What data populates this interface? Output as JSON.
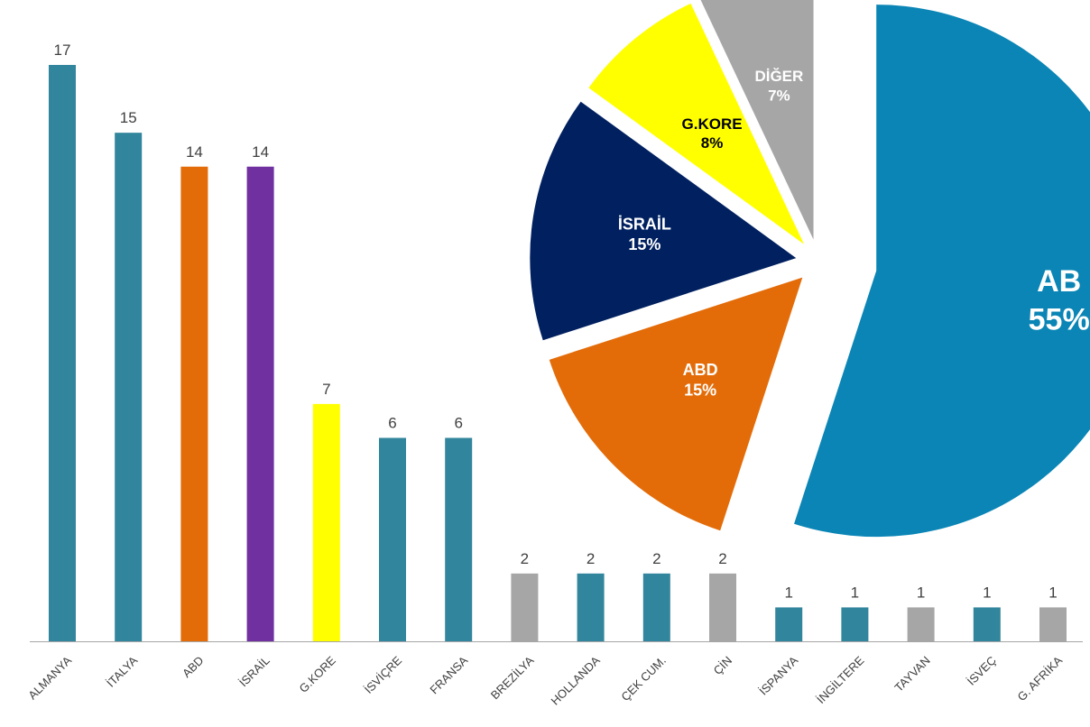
{
  "chart_data": [
    {
      "type": "bar",
      "categories": [
        "ALMANYA",
        "İTALYA",
        "ABD",
        "İSRAİL",
        "G.KORE",
        "İSVİÇRE",
        "FRANSA",
        "BREZİLYA",
        "HOLLANDA",
        "ÇEK CUM.",
        "ÇİN",
        "İSPANYA",
        "İNGİLTERE",
        "TAYVAN",
        "İSVEÇ",
        "G. AFRİKA"
      ],
      "values": [
        17,
        15,
        14,
        14,
        7,
        6,
        6,
        2,
        2,
        2,
        2,
        1,
        1,
        1,
        1,
        1
      ],
      "value_labels": [
        "17",
        "15",
        "14",
        "14",
        "7",
        "6",
        "6",
        "2",
        "2",
        "2",
        "2",
        "1",
        "1",
        "1",
        "1",
        "1"
      ],
      "colors": [
        "#31859c",
        "#31859c",
        "#e36c09",
        "#7030a0",
        "#ffff00",
        "#31859c",
        "#31859c",
        "#a6a6a6",
        "#31859c",
        "#31859c",
        "#a6a6a6",
        "#31859c",
        "#31859c",
        "#a6a6a6",
        "#31859c",
        "#a6a6a6"
      ],
      "ylim": [
        0,
        17
      ],
      "grid": false,
      "axis_color": "#a6a6a6"
    },
    {
      "type": "pie",
      "slices": [
        {
          "label": "AB",
          "value": 55,
          "value_label": "55%",
          "color": "#0a85b5",
          "text_color": "#ffffff"
        },
        {
          "label": "ABD",
          "value": 15,
          "value_label": "15%",
          "color": "#e36c09",
          "text_color": "#ffffff"
        },
        {
          "label": "İSRAİL",
          "value": 15,
          "value_label": "15%",
          "color": "#002060",
          "text_color": "#ffffff"
        },
        {
          "label": "G.KORE",
          "value": 8,
          "value_label": "8%",
          "color": "#ffff00",
          "text_color": "#000000"
        },
        {
          "label": "DİĞER",
          "value": 7,
          "value_label": "7%",
          "color": "#a6a6a6",
          "text_color": "#ffffff"
        }
      ]
    }
  ]
}
